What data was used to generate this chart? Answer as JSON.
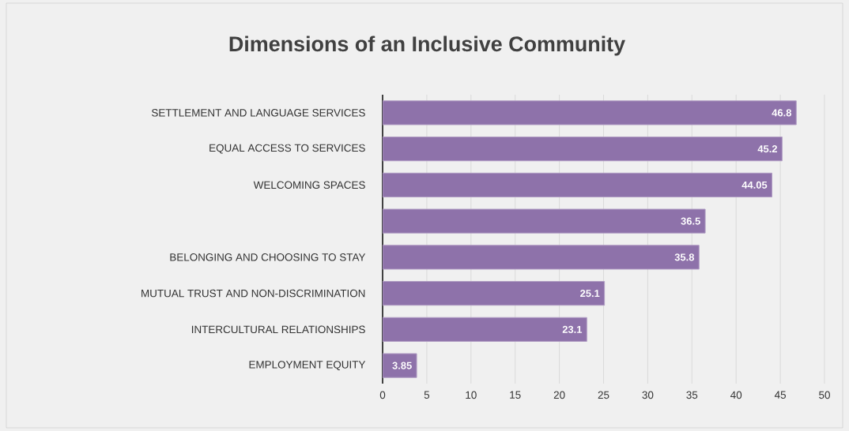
{
  "chart_data": {
    "type": "bar",
    "orientation": "horizontal",
    "title": "Dimensions of an Inclusive Community",
    "categories": [
      "SETTLEMENT AND LANGUAGE SERVICES",
      "EQUAL ACCESS TO SERVICES",
      "WELCOMING SPACES",
      null,
      "BELONGING AND CHOOSING TO STAY",
      "MUTUAL TRUST AND NON-DISCRIMINATION",
      "INTERCULTURAL RELATIONSHIPS",
      "EMPLOYMENT EQUITY"
    ],
    "values": [
      46.8,
      45.2,
      44.05,
      36.5,
      35.8,
      25.1,
      23.1,
      3.85
    ],
    "color": "#8e72aa",
    "xlim": [
      0,
      50
    ],
    "xticks": [
      0,
      5,
      10,
      15,
      20,
      25,
      30,
      35,
      40,
      45,
      50
    ],
    "grid": "x",
    "data_labels": true
  }
}
